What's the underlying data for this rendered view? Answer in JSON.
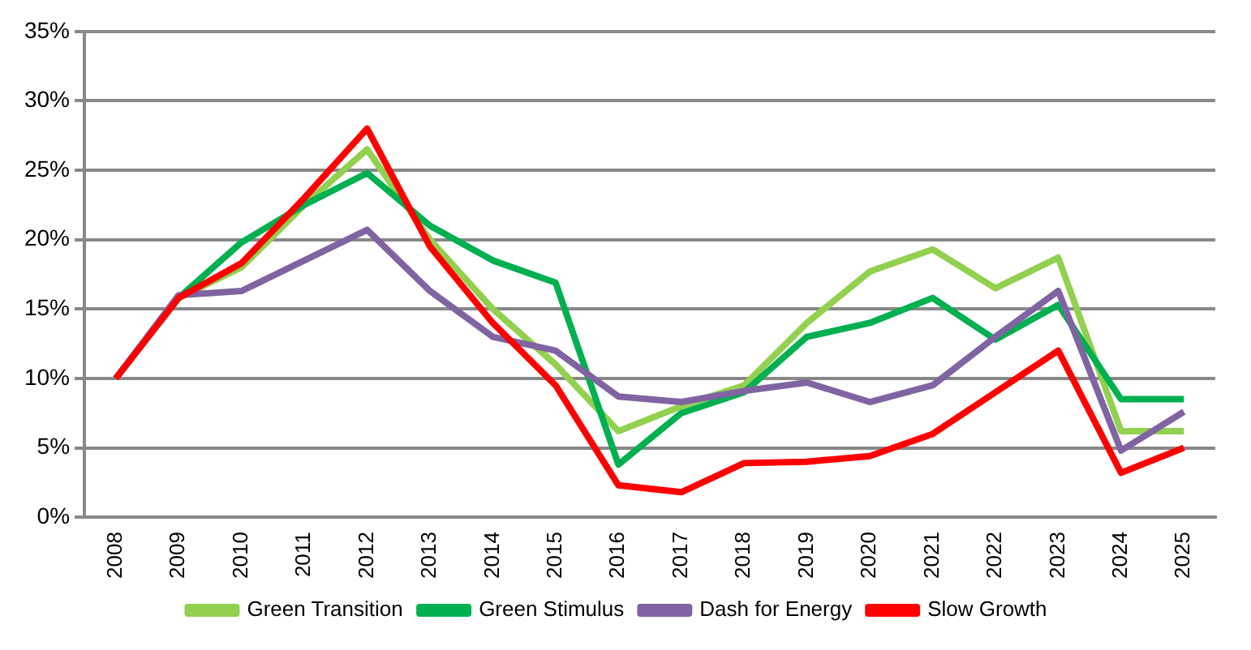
{
  "chart_data": {
    "type": "line",
    "categories": [
      "2008",
      "2009",
      "2010",
      "2011",
      "2012",
      "2013",
      "2014",
      "2015",
      "2016",
      "2017",
      "2018",
      "2019",
      "2020",
      "2021",
      "2022",
      "2023",
      "2024",
      "2025"
    ],
    "series": [
      {
        "name": "Green Transition",
        "color": "#92d050",
        "values": [
          10,
          15.8,
          18,
          22.5,
          26.5,
          20,
          15,
          11,
          6.2,
          8,
          9.5,
          14,
          17.7,
          19.3,
          16.5,
          18.7,
          6.2,
          6.2
        ]
      },
      {
        "name": "Green Stimulus",
        "color": "#00b050",
        "values": [
          10,
          15.8,
          19.8,
          22.5,
          24.8,
          21,
          18.5,
          16.9,
          3.8,
          7.5,
          9,
          13,
          14,
          15.8,
          12.8,
          15.3,
          8.5,
          8.5
        ]
      },
      {
        "name": "Dash for Energy",
        "color": "#8064a2",
        "values": [
          10,
          16,
          16.3,
          18.5,
          20.7,
          16.3,
          13,
          12,
          8.7,
          8.3,
          9.1,
          9.7,
          8.3,
          9.5,
          13,
          16.3,
          4.8,
          7.6
        ]
      },
      {
        "name": "Slow Growth",
        "color": "#ff0000",
        "values": [
          10,
          15.8,
          18.3,
          23,
          28,
          19.5,
          14,
          9.5,
          2.3,
          1.8,
          3.9,
          4,
          4.4,
          6,
          9,
          12,
          3.2,
          5
        ]
      }
    ],
    "ylim": [
      0,
      35
    ],
    "yticks": [
      {
        "value": 0,
        "label": "0%"
      },
      {
        "value": 5,
        "label": "5%"
      },
      {
        "value": 10,
        "label": "10%"
      },
      {
        "value": 15,
        "label": "15%"
      },
      {
        "value": 20,
        "label": "20%"
      },
      {
        "value": 25,
        "label": "25%"
      },
      {
        "value": 30,
        "label": "30%"
      },
      {
        "value": 35,
        "label": "35%"
      }
    ],
    "grid": "y",
    "legend": "bottom",
    "marker": "none",
    "line_style": "solid"
  }
}
